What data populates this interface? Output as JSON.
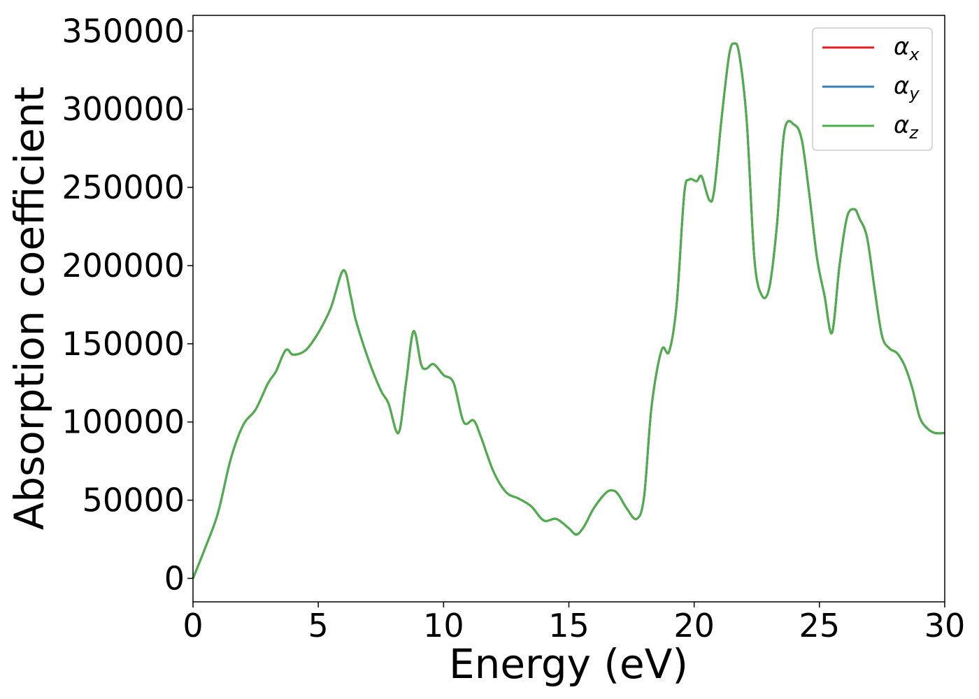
{
  "chart_data": {
    "type": "line",
    "title": "",
    "xlabel": "Energy (eV)",
    "ylabel": "Absorption coefficient",
    "xlim": [
      0,
      30
    ],
    "ylim": [
      -15000,
      360000
    ],
    "x_ticks": [
      0,
      5,
      10,
      15,
      20,
      25,
      30
    ],
    "x_tick_labels": [
      "0",
      "5",
      "10",
      "15",
      "20",
      "25",
      "30"
    ],
    "y_ticks": [
      0,
      50000,
      100000,
      150000,
      200000,
      250000,
      300000,
      350000
    ],
    "y_tick_labels": [
      "0",
      "50000",
      "100000",
      "150000",
      "200000",
      "250000",
      "300000",
      "350000"
    ],
    "grid": false,
    "legend_position": "top-right",
    "x": [
      0,
      0.5,
      1,
      1.5,
      2,
      2.5,
      3,
      3.3,
      3.7,
      4,
      4.5,
      5,
      5.5,
      6,
      6.3,
      6.5,
      7,
      7.5,
      7.8,
      8.2,
      8.5,
      8.8,
      9.1,
      9.3,
      9.6,
      10,
      10.4,
      10.8,
      11.2,
      11.5,
      12,
      12.5,
      13,
      13.5,
      14,
      14.5,
      15,
      15.3,
      15.6,
      16,
      16.5,
      16.8,
      17,
      17.3,
      17.7,
      18,
      18.3,
      18.7,
      19,
      19.3,
      19.6,
      19.8,
      20.1,
      20.3,
      20.6,
      20.8,
      21.1,
      21.4,
      21.6,
      21.8,
      22.1,
      22.4,
      22.7,
      23,
      23.3,
      23.6,
      24,
      24.3,
      24.6,
      24.9,
      25.2,
      25.5,
      25.8,
      26.1,
      26.4,
      26.6,
      26.9,
      27.2,
      27.5,
      27.8,
      28.1,
      28.4,
      28.7,
      29,
      29.3,
      29.6,
      30
    ],
    "series": [
      {
        "name": "α_x",
        "color": "#e41a1c",
        "values": [
          0,
          20000,
          42000,
          76000,
          98000,
          108000,
          125000,
          132000,
          146000,
          143000,
          146000,
          157000,
          173000,
          197000,
          180000,
          165000,
          140000,
          120000,
          112000,
          93000,
          125000,
          158000,
          137000,
          134000,
          137000,
          130000,
          125000,
          100000,
          101000,
          90000,
          68000,
          55000,
          51000,
          46000,
          37000,
          38000,
          32000,
          28000,
          33000,
          45000,
          55000,
          56000,
          53000,
          45000,
          38000,
          52000,
          110000,
          146000,
          145000,
          175000,
          245000,
          255000,
          254000,
          257000,
          242000,
          248000,
          295000,
          335000,
          342000,
          335000,
          292000,
          205000,
          181000,
          186000,
          225000,
          286000,
          290000,
          280000,
          245000,
          205000,
          181000,
          157000,
          200000,
          231000,
          236000,
          230000,
          218000,
          185000,
          155000,
          147000,
          144000,
          136000,
          122000,
          103000,
          96000,
          93000,
          93000
        ]
      },
      {
        "name": "α_y",
        "color": "#377eb8",
        "values": [
          0,
          20000,
          42000,
          76000,
          98000,
          108000,
          125000,
          132000,
          146000,
          143000,
          146000,
          157000,
          173000,
          197000,
          180000,
          165000,
          140000,
          120000,
          112000,
          93000,
          125000,
          158000,
          137000,
          134000,
          137000,
          130000,
          125000,
          100000,
          101000,
          90000,
          68000,
          55000,
          51000,
          46000,
          37000,
          38000,
          32000,
          28000,
          33000,
          45000,
          55000,
          56000,
          53000,
          45000,
          38000,
          52000,
          110000,
          146000,
          145000,
          175000,
          245000,
          255000,
          254000,
          257000,
          242000,
          248000,
          295000,
          335000,
          342000,
          335000,
          292000,
          205000,
          181000,
          186000,
          225000,
          286000,
          290000,
          280000,
          245000,
          205000,
          181000,
          157000,
          200000,
          231000,
          236000,
          230000,
          218000,
          185000,
          155000,
          147000,
          144000,
          136000,
          122000,
          103000,
          96000,
          93000,
          93000
        ]
      },
      {
        "name": "α_z",
        "color": "#4daf4a",
        "values": [
          0,
          20000,
          42000,
          76000,
          98000,
          108000,
          125000,
          132000,
          146000,
          143000,
          146000,
          157000,
          173000,
          197000,
          180000,
          165000,
          140000,
          120000,
          112000,
          93000,
          125000,
          158000,
          137000,
          134000,
          137000,
          130000,
          125000,
          100000,
          101000,
          90000,
          68000,
          55000,
          51000,
          46000,
          37000,
          38000,
          32000,
          28000,
          33000,
          45000,
          55000,
          56000,
          53000,
          45000,
          38000,
          52000,
          110000,
          146000,
          145000,
          175000,
          245000,
          255000,
          254000,
          257000,
          242000,
          248000,
          295000,
          335000,
          342000,
          335000,
          292000,
          205000,
          181000,
          186000,
          225000,
          286000,
          290000,
          280000,
          245000,
          205000,
          181000,
          157000,
          200000,
          231000,
          236000,
          230000,
          218000,
          185000,
          155000,
          147000,
          144000,
          136000,
          122000,
          103000,
          96000,
          93000,
          93000
        ]
      }
    ]
  }
}
